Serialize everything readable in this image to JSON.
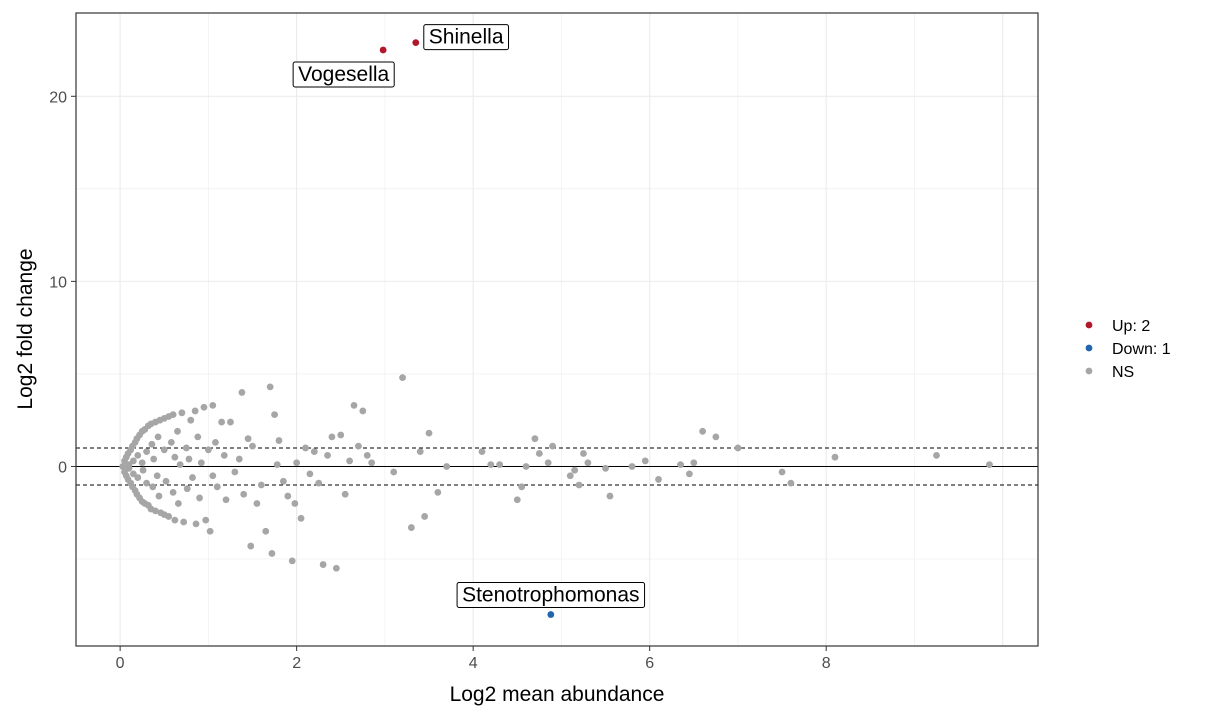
{
  "chart_data": {
    "type": "scatter",
    "xlabel": "Log2 mean abundance",
    "ylabel": "Log2 fold change",
    "xlim": [
      -0.5,
      10.4
    ],
    "ylim": [
      -9.7,
      24.5
    ],
    "x_ticks": [
      0,
      2,
      4,
      6,
      8
    ],
    "y_ticks": [
      0,
      10,
      20
    ],
    "grid": true,
    "legend_position": "right",
    "hlines": [
      {
        "y": 0,
        "style": "solid"
      },
      {
        "y": 1,
        "style": "dashed"
      },
      {
        "y": -1,
        "style": "dashed"
      }
    ],
    "colors": {
      "up": "#b2182b",
      "down": "#2166ac",
      "ns": "#a6a6a6"
    },
    "legend": [
      {
        "key": "up",
        "label": "Up: 2"
      },
      {
        "key": "down",
        "label": "Down: 1"
      },
      {
        "key": "ns",
        "label": "NS"
      }
    ],
    "series": [
      {
        "name": "Up: 2",
        "key": "up",
        "points": [
          [
            2.98,
            22.5
          ],
          [
            3.35,
            22.9
          ]
        ]
      },
      {
        "name": "Down: 1",
        "key": "down",
        "points": [
          [
            4.88,
            -8.0
          ]
        ]
      },
      {
        "name": "NS",
        "key": "ns",
        "points": [
          [
            0.03,
            0.0
          ],
          [
            0.05,
            0.3
          ],
          [
            0.05,
            -0.3
          ],
          [
            0.07,
            0.5
          ],
          [
            0.07,
            -0.5
          ],
          [
            0.09,
            0.7
          ],
          [
            0.09,
            -0.7
          ],
          [
            0.1,
            0.1
          ],
          [
            0.1,
            -0.1
          ],
          [
            0.12,
            0.9
          ],
          [
            0.12,
            -0.9
          ],
          [
            0.14,
            1.1
          ],
          [
            0.14,
            -1.1
          ],
          [
            0.15,
            0.3
          ],
          [
            0.15,
            -0.4
          ],
          [
            0.17,
            1.3
          ],
          [
            0.17,
            -1.3
          ],
          [
            0.19,
            1.5
          ],
          [
            0.19,
            -1.5
          ],
          [
            0.2,
            0.6
          ],
          [
            0.2,
            -0.6
          ],
          [
            0.22,
            1.7
          ],
          [
            0.22,
            -1.7
          ],
          [
            0.25,
            1.9
          ],
          [
            0.25,
            -1.9
          ],
          [
            0.25,
            0.2
          ],
          [
            0.26,
            -0.2
          ],
          [
            0.28,
            2.0
          ],
          [
            0.28,
            -2.0
          ],
          [
            0.3,
            0.8
          ],
          [
            0.3,
            -0.9
          ],
          [
            0.32,
            2.2
          ],
          [
            0.32,
            -2.1
          ],
          [
            0.35,
            2.3
          ],
          [
            0.35,
            -2.3
          ],
          [
            0.36,
            1.2
          ],
          [
            0.37,
            -1.1
          ],
          [
            0.38,
            0.4
          ],
          [
            0.4,
            2.4
          ],
          [
            0.4,
            -2.4
          ],
          [
            0.42,
            -0.5
          ],
          [
            0.43,
            1.6
          ],
          [
            0.44,
            -1.6
          ],
          [
            0.45,
            2.5
          ],
          [
            0.46,
            -2.5
          ],
          [
            0.5,
            2.6
          ],
          [
            0.5,
            -2.6
          ],
          [
            0.5,
            0.9
          ],
          [
            0.52,
            -0.8
          ],
          [
            0.55,
            2.7
          ],
          [
            0.55,
            -2.7
          ],
          [
            0.58,
            1.3
          ],
          [
            0.6,
            -1.4
          ],
          [
            0.6,
            2.8
          ],
          [
            0.62,
            0.5
          ],
          [
            0.62,
            -2.9
          ],
          [
            0.65,
            1.9
          ],
          [
            0.66,
            -2.0
          ],
          [
            0.68,
            0.1
          ],
          [
            0.7,
            2.9
          ],
          [
            0.72,
            -3.0
          ],
          [
            0.75,
            1.0
          ],
          [
            0.76,
            -1.2
          ],
          [
            0.78,
            0.4
          ],
          [
            0.8,
            2.5
          ],
          [
            0.82,
            -0.6
          ],
          [
            0.85,
            3.0
          ],
          [
            0.86,
            -3.1
          ],
          [
            0.88,
            1.6
          ],
          [
            0.9,
            -1.7
          ],
          [
            0.92,
            0.2
          ],
          [
            0.95,
            3.2
          ],
          [
            0.97,
            -2.9
          ],
          [
            1.0,
            0.9
          ],
          [
            1.02,
            -3.5
          ],
          [
            1.05,
            3.3
          ],
          [
            1.05,
            -0.5
          ],
          [
            1.08,
            1.3
          ],
          [
            1.1,
            -1.1
          ],
          [
            1.15,
            2.4
          ],
          [
            1.18,
            0.6
          ],
          [
            1.2,
            -1.8
          ],
          [
            1.25,
            2.4
          ],
          [
            1.3,
            -0.3
          ],
          [
            1.35,
            0.4
          ],
          [
            1.38,
            4.0
          ],
          [
            1.4,
            -1.5
          ],
          [
            1.45,
            1.5
          ],
          [
            1.48,
            -4.3
          ],
          [
            1.5,
            1.1
          ],
          [
            1.55,
            -2.0
          ],
          [
            1.6,
            -1.0
          ],
          [
            1.65,
            -3.5
          ],
          [
            1.7,
            4.3
          ],
          [
            1.72,
            -4.7
          ],
          [
            1.75,
            2.8
          ],
          [
            1.78,
            0.1
          ],
          [
            1.8,
            1.4
          ],
          [
            1.85,
            -0.8
          ],
          [
            1.9,
            -1.6
          ],
          [
            1.95,
            -5.1
          ],
          [
            1.98,
            -2.0
          ],
          [
            2.0,
            0.2
          ],
          [
            2.05,
            -2.8
          ],
          [
            2.1,
            1.0
          ],
          [
            2.15,
            -0.4
          ],
          [
            2.2,
            0.8
          ],
          [
            2.25,
            -0.9
          ],
          [
            2.3,
            -5.3
          ],
          [
            2.35,
            0.6
          ],
          [
            2.4,
            1.6
          ],
          [
            2.45,
            -5.5
          ],
          [
            2.5,
            1.7
          ],
          [
            2.55,
            -1.5
          ],
          [
            2.6,
            0.3
          ],
          [
            2.65,
            3.3
          ],
          [
            2.7,
            1.1
          ],
          [
            2.75,
            3.0
          ],
          [
            2.8,
            0.6
          ],
          [
            2.85,
            0.2
          ],
          [
            3.1,
            -0.3
          ],
          [
            3.2,
            4.8
          ],
          [
            3.3,
            -3.3
          ],
          [
            3.4,
            0.8
          ],
          [
            3.45,
            -2.7
          ],
          [
            3.5,
            1.8
          ],
          [
            3.6,
            -1.4
          ],
          [
            3.7,
            0.0
          ],
          [
            4.1,
            0.8
          ],
          [
            4.2,
            0.1
          ],
          [
            4.3,
            0.1
          ],
          [
            4.5,
            -1.8
          ],
          [
            4.55,
            -1.1
          ],
          [
            4.6,
            0.0
          ],
          [
            4.7,
            1.5
          ],
          [
            4.75,
            0.7
          ],
          [
            4.85,
            0.2
          ],
          [
            4.9,
            1.1
          ],
          [
            5.1,
            -0.5
          ],
          [
            5.15,
            -0.2
          ],
          [
            5.2,
            -1.0
          ],
          [
            5.25,
            0.7
          ],
          [
            5.3,
            0.2
          ],
          [
            5.5,
            -0.1
          ],
          [
            5.55,
            -1.6
          ],
          [
            5.8,
            0.0
          ],
          [
            5.95,
            0.3
          ],
          [
            6.1,
            -0.7
          ],
          [
            6.35,
            0.1
          ],
          [
            6.45,
            -0.4
          ],
          [
            6.5,
            0.2
          ],
          [
            6.6,
            1.9
          ],
          [
            6.75,
            1.6
          ],
          [
            7.0,
            1.0
          ],
          [
            7.5,
            -0.3
          ],
          [
            7.6,
            -0.9
          ],
          [
            8.1,
            0.5
          ],
          [
            9.25,
            0.6
          ],
          [
            9.85,
            0.1
          ]
        ]
      }
    ],
    "labels": [
      {
        "text": "Shinella",
        "point": [
          3.35,
          22.9
        ],
        "side": "right"
      },
      {
        "text": "Vogesella",
        "point": [
          2.98,
          22.5
        ],
        "side": "below-left"
      },
      {
        "text": "Stenotrophomonas",
        "point": [
          4.88,
          -8.0
        ],
        "side": "above"
      }
    ]
  }
}
